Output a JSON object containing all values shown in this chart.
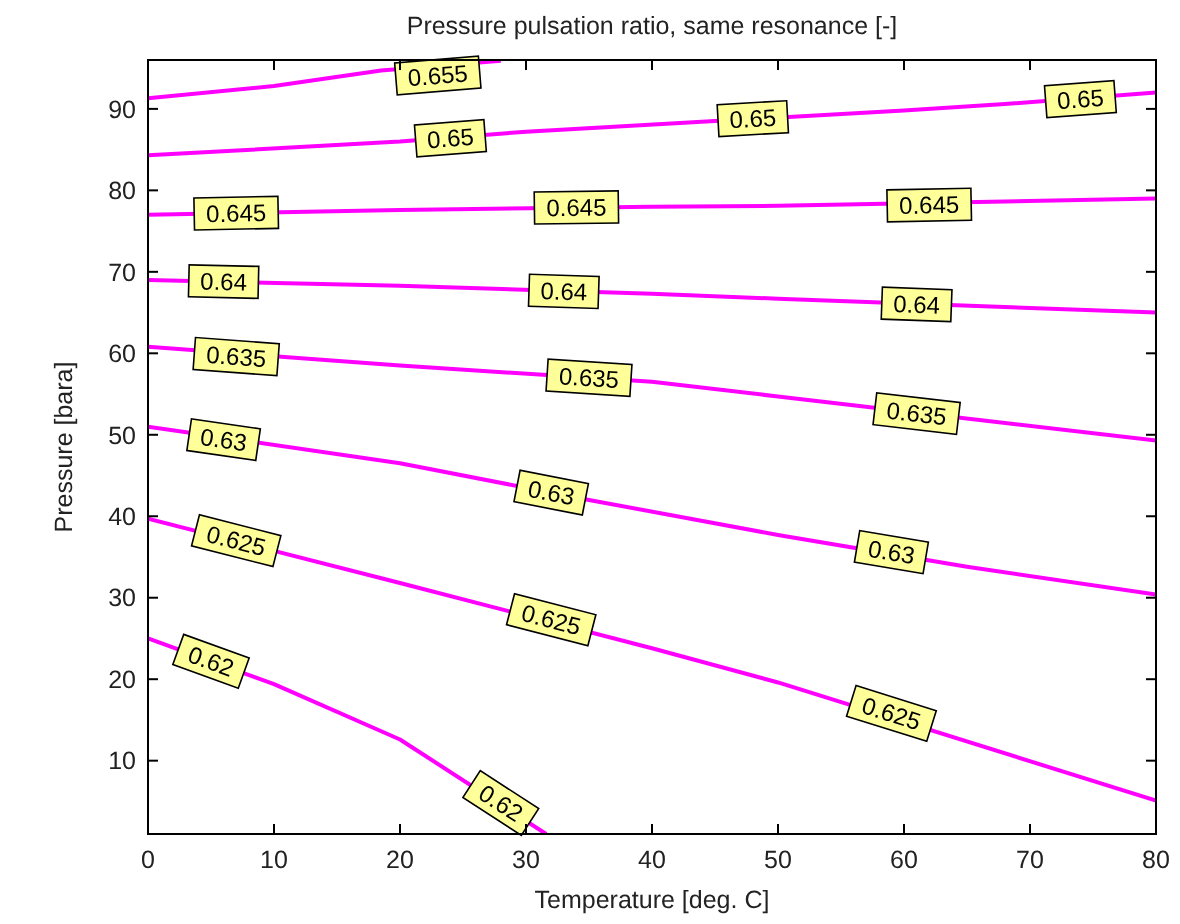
{
  "chart_data": {
    "type": "line",
    "title": "Pressure pulsation ratio, same resonance [-]",
    "xlabel": "Temperature [deg. C]",
    "ylabel": "Pressure [bara]",
    "xlim": [
      0,
      80
    ],
    "xticks": [
      0,
      10,
      20,
      30,
      40,
      50,
      60,
      70,
      80
    ],
    "ylim": [
      1,
      96
    ],
    "yticks": [
      10,
      20,
      30,
      40,
      50,
      60,
      70,
      80,
      90
    ],
    "grid": false,
    "marker": "none",
    "line_style": "solid",
    "series": [
      {
        "color": "#ff00ff",
        "x": [
          0,
          10,
          18.5,
          28
        ],
        "values": [
          91.3,
          92.8,
          94.7,
          95.9
        ]
      },
      {
        "color": "#ff00ff",
        "x": [
          0,
          20,
          30,
          45,
          60,
          68,
          80
        ],
        "values": [
          84.3,
          86,
          87.2,
          88.5,
          89.8,
          90.6,
          92
        ]
      },
      {
        "color": "#ff00ff",
        "x": [
          0,
          20,
          40,
          50,
          80
        ],
        "values": [
          77,
          77.6,
          78,
          78.1,
          79
        ]
      },
      {
        "color": "#ff00ff",
        "x": [
          0,
          20,
          40,
          50,
          80
        ],
        "values": [
          69,
          68.3,
          67.3,
          66.7,
          65
        ]
      },
      {
        "color": "#ff00ff",
        "x": [
          0,
          20,
          40,
          50,
          80
        ],
        "values": [
          60.8,
          58.5,
          56.5,
          54.7,
          49.3
        ]
      },
      {
        "color": "#ff00ff",
        "x": [
          0,
          20,
          35,
          50,
          65,
          80
        ],
        "values": [
          51,
          46.5,
          42,
          37.7,
          33.8,
          30.4
        ]
      },
      {
        "color": "#ff00ff",
        "x": [
          0,
          20,
          40,
          50,
          80
        ],
        "values": [
          39.7,
          31.8,
          23.8,
          19.6,
          5.1
        ]
      },
      {
        "color": "#ff00ff",
        "x": [
          0,
          10,
          20,
          31.6
        ],
        "values": [
          25,
          19.4,
          12.6,
          1
        ]
      }
    ],
    "annotations": [
      {
        "text": "0.655",
        "x": 23,
        "y": 94.1
      },
      {
        "text": "0.65",
        "x": 24,
        "y": 86.4
      },
      {
        "text": "0.65",
        "x": 48,
        "y": 88.8
      },
      {
        "text": "0.65",
        "x": 74,
        "y": 91.2
      },
      {
        "text": "0.645",
        "x": 7,
        "y": 77.2
      },
      {
        "text": "0.645",
        "x": 34,
        "y": 77.9
      },
      {
        "text": "0.645",
        "x": 62,
        "y": 78.2
      },
      {
        "text": "0.64",
        "x": 6,
        "y": 68.8
      },
      {
        "text": "0.64",
        "x": 33,
        "y": 67.6
      },
      {
        "text": "0.64",
        "x": 61,
        "y": 66
      },
      {
        "text": "0.635",
        "x": 7,
        "y": 59.6
      },
      {
        "text": "0.635",
        "x": 35,
        "y": 57
      },
      {
        "text": "0.635",
        "x": 61,
        "y": 52.6
      },
      {
        "text": "0.63",
        "x": 6,
        "y": 49.4
      },
      {
        "text": "0.63",
        "x": 32,
        "y": 42.9
      },
      {
        "text": "0.63",
        "x": 59,
        "y": 35.6
      },
      {
        "text": "0.625",
        "x": 7,
        "y": 37
      },
      {
        "text": "0.625",
        "x": 32,
        "y": 27.3
      },
      {
        "text": "0.625",
        "x": 59,
        "y": 15.8
      },
      {
        "text": "0.62",
        "x": 5,
        "y": 22.2
      },
      {
        "text": "0.62",
        "x": 28,
        "y": 4.8
      }
    ]
  }
}
